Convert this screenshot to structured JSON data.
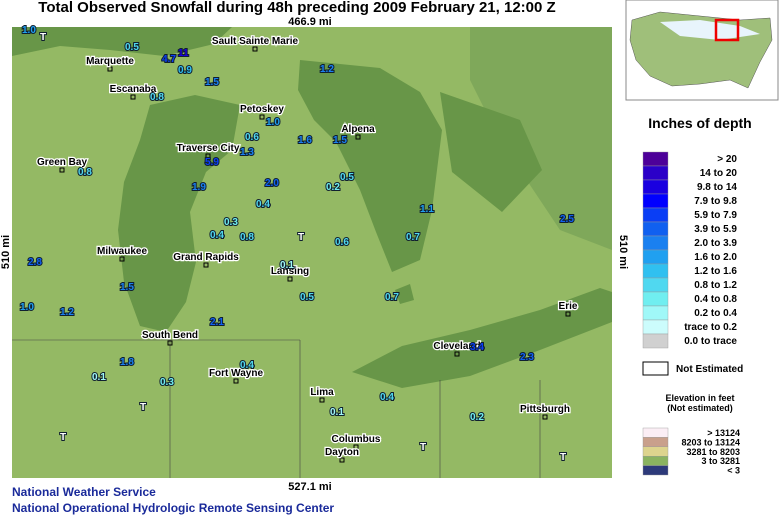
{
  "header": {
    "title": "Total Observed Snowfall during 48h preceding 2009 February 21, 12:00 Z"
  },
  "map": {
    "scale_top": "466.9 mi",
    "scale_bottom": "527.1 mi",
    "scale_left": "510 mi",
    "scale_right": "510 mi",
    "cities": [
      "Sault Sainte Marie",
      "Marquette",
      "Escanaba",
      "Petoskey",
      "Alpena",
      "Traverse City",
      "Green Bay",
      "Milwaukee",
      "Grand Rapids",
      "Lansing",
      "South Bend",
      "Fort Wayne",
      "Cleveland",
      "Erie",
      "Lima",
      "Pittsburgh",
      "Columbus",
      "Dayton"
    ],
    "stations": [
      {
        "label": "1.0",
        "color": "#20a0f0"
      },
      {
        "label": "T",
        "color": "#ffffff"
      },
      {
        "label": "0.5",
        "color": "#50d8f0"
      },
      {
        "label": "4.7",
        "color": "#0a3ef5"
      },
      {
        "label": "11",
        "color": "#1a00e0"
      },
      {
        "label": "0.9",
        "color": "#30c0f0"
      },
      {
        "label": "1.5",
        "color": "#1a80f0"
      },
      {
        "label": "0.8",
        "color": "#50d8f0"
      },
      {
        "label": "1.2",
        "color": "#1a80f0"
      },
      {
        "label": "0.6",
        "color": "#50d8f0"
      },
      {
        "label": "1.0",
        "color": "#20a0f0"
      },
      {
        "label": "5.9",
        "color": "#0a3ef5"
      },
      {
        "label": "1.3",
        "color": "#1a80f0"
      },
      {
        "label": "0.8",
        "color": "#50d8f0"
      },
      {
        "label": "1.9",
        "color": "#1a80f0"
      },
      {
        "label": "2.0",
        "color": "#1060f0"
      },
      {
        "label": "1.6",
        "color": "#1a80f0"
      },
      {
        "label": "0.2",
        "color": "#70eef0"
      },
      {
        "label": "0.5",
        "color": "#50d8f0"
      },
      {
        "label": "1.5",
        "color": "#1a80f0"
      },
      {
        "label": "0.4",
        "color": "#50d8f0"
      },
      {
        "label": "0.3",
        "color": "#70eef0"
      },
      {
        "label": "2.8",
        "color": "#1060f0"
      },
      {
        "label": "0.4",
        "color": "#50d8f0"
      },
      {
        "label": "0.8",
        "color": "#50d8f0"
      },
      {
        "label": "T",
        "color": "#ffffff"
      },
      {
        "label": "0.6",
        "color": "#50d8f0"
      },
      {
        "label": "0.7",
        "color": "#50d8f0"
      },
      {
        "label": "1.1",
        "color": "#20a0f0"
      },
      {
        "label": "2.5",
        "color": "#1060f0"
      },
      {
        "label": "0.1",
        "color": "#a0f8f8"
      },
      {
        "label": "0.5",
        "color": "#50d8f0"
      },
      {
        "label": "2.1",
        "color": "#1060f0"
      },
      {
        "label": "1.5",
        "color": "#1a80f0"
      },
      {
        "label": "1.2",
        "color": "#1a80f0"
      },
      {
        "label": "1.0",
        "color": "#20a0f0"
      },
      {
        "label": "0.3",
        "color": "#70eef0"
      },
      {
        "label": "0.4",
        "color": "#50d8f0"
      },
      {
        "label": "1.8",
        "color": "#1a80f0"
      },
      {
        "label": "3.4",
        "color": "#0a3ef5"
      },
      {
        "label": "2.3",
        "color": "#1060f0"
      },
      {
        "label": "0.1",
        "color": "#a0f8f8"
      },
      {
        "label": "T",
        "color": "#ffffff"
      },
      {
        "label": "T",
        "color": "#ffffff"
      },
      {
        "label": "0.4",
        "color": "#50d8f0"
      },
      {
        "label": "T",
        "color": "#ffffff"
      },
      {
        "label": "0.1",
        "color": "#a0f8f8"
      },
      {
        "label": "T",
        "color": "#ffffff"
      },
      {
        "label": "0.2",
        "color": "#70eef0"
      },
      {
        "label": "0.7",
        "color": "#50d8f0"
      }
    ]
  },
  "legend": {
    "title": "Inches of depth",
    "depth": [
      {
        "label": ">  20",
        "color": "#4d0099"
      },
      {
        "label": "14 to  20",
        "color": "#2b00c8"
      },
      {
        "label": "9.8 to  14",
        "color": "#1a00e0"
      },
      {
        "label": "7.9 to  9.8",
        "color": "#0000ff"
      },
      {
        "label": "5.9 to  7.9",
        "color": "#0a3ef5"
      },
      {
        "label": "3.9 to  5.9",
        "color": "#1060f0"
      },
      {
        "label": "2.0 to  3.9",
        "color": "#1a80f0"
      },
      {
        "label": "1.6 to  2.0",
        "color": "#20a0f0"
      },
      {
        "label": "1.2 to  1.6",
        "color": "#30c0f0"
      },
      {
        "label": "0.8 to  1.2",
        "color": "#50d8f0"
      },
      {
        "label": "0.4 to  0.8",
        "color": "#70eef0"
      },
      {
        "label": "0.2 to  0.4",
        "color": "#a0f8f8"
      },
      {
        "label": "trace to  0.2",
        "color": "#ccfcfc"
      },
      {
        "label": "0.0 to trace",
        "color": "#d0d0d0"
      }
    ],
    "not_estimated": "Not Estimated",
    "elevation_title": "Elevation in feet",
    "elevation_subtitle": "(Not estimated)",
    "elevation": [
      {
        "label": ">  13124",
        "color": "#fbeef5"
      },
      {
        "label": "8203 to  13124",
        "color": "#c9a08c"
      },
      {
        "label": "3281 to   8203",
        "color": "#ddd48e"
      },
      {
        "label": "3 to   3281",
        "color": "#8ab360"
      },
      {
        "label": "<     3",
        "color": "#2d3a7a"
      }
    ]
  },
  "footer": {
    "line1": "National Weather Service",
    "line2": "National Operational Hydrologic Remote Sensing Center"
  }
}
